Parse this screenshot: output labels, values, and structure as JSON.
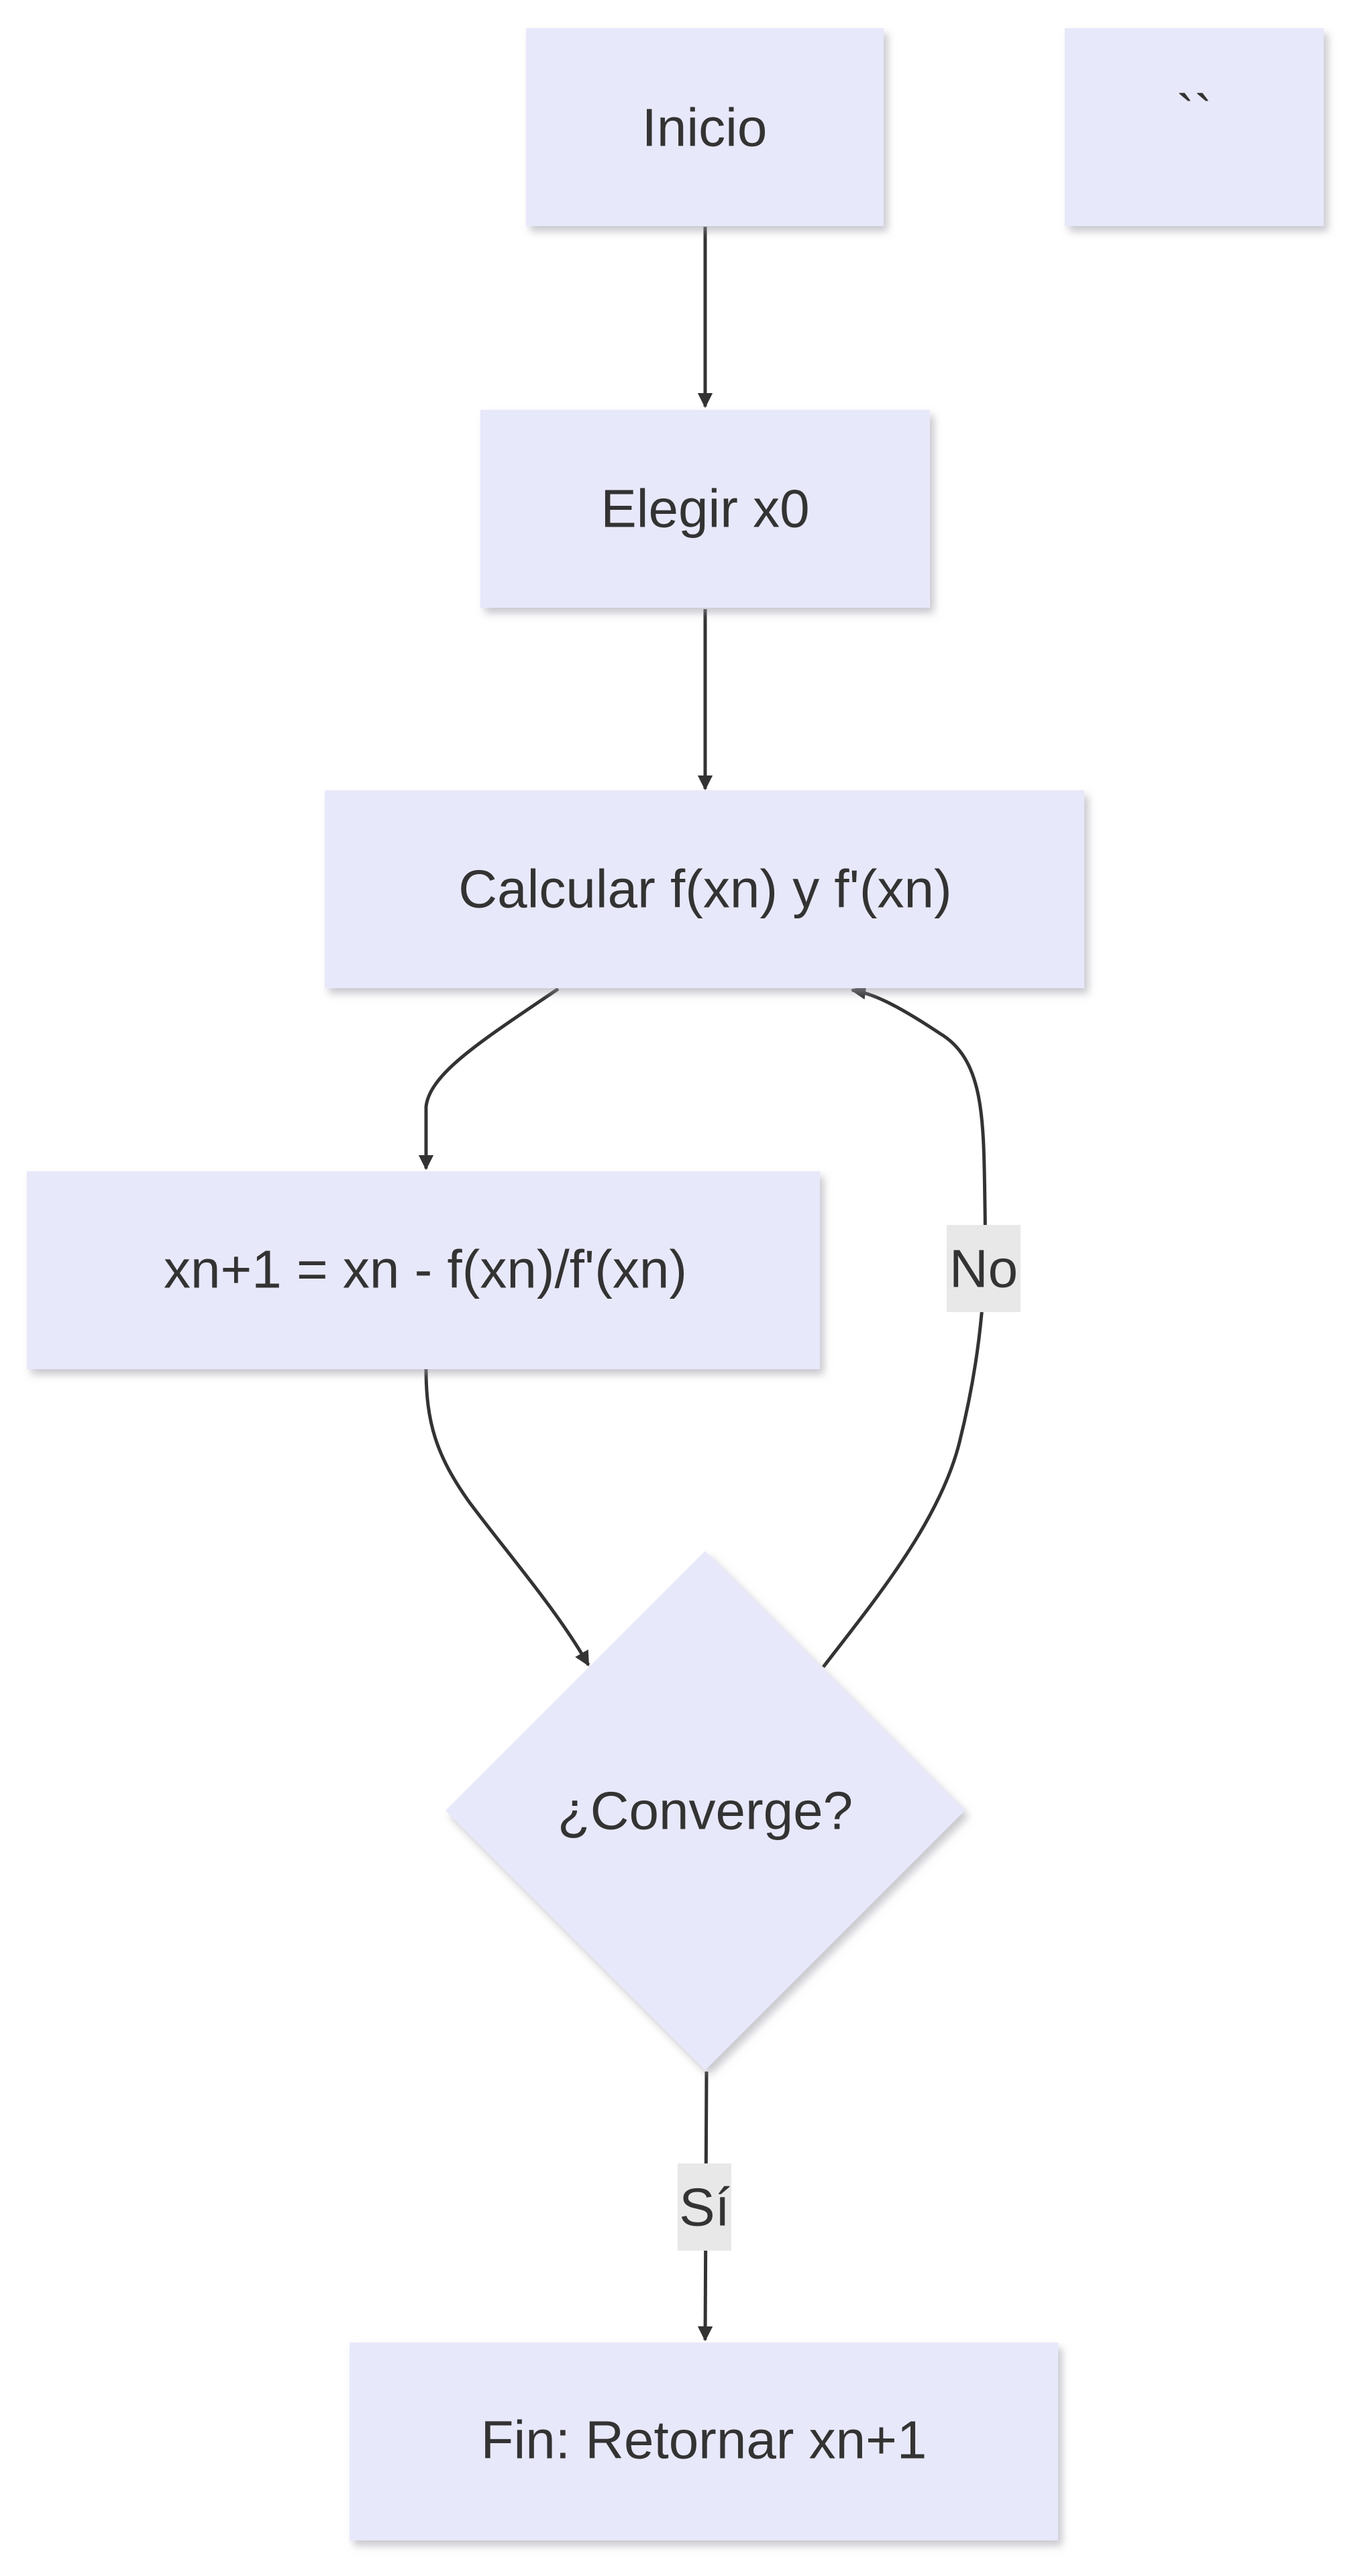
{
  "colors": {
    "node_fill": "#e8e8fb",
    "node_shadow": "#c8c8cf",
    "edge": "#333333",
    "label_bg": "#e8e8e8",
    "text": "#333333",
    "background": "#ffffff"
  },
  "nodes": {
    "inicio": "Inicio",
    "backticks": "``",
    "elegir": "Elegir x0",
    "calcular": "Calcular f(xn) y f'(xn)",
    "formula": "xn+1 = xn - f(xn)/f'(xn)",
    "converge": "¿Converge?",
    "fin": "Fin: Retornar xn+1"
  },
  "edge_labels": {
    "no": "No",
    "si": "Sí"
  }
}
